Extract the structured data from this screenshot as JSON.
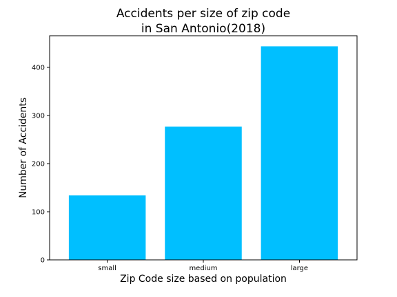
{
  "chart_data": {
    "type": "bar",
    "title_lines": [
      "Accidents per size of zip code",
      "in San Antonio(2018)"
    ],
    "xlabel": "Zip Code size based on population",
    "ylabel": "Number of Accidents",
    "categories": [
      "small",
      "medium",
      "large"
    ],
    "values": [
      134,
      277,
      444
    ],
    "ylim": [
      0,
      466
    ],
    "yticks": [
      0,
      100,
      200,
      300,
      400
    ],
    "bar_color": "#00bfff",
    "grid": false,
    "legend": "none"
  }
}
